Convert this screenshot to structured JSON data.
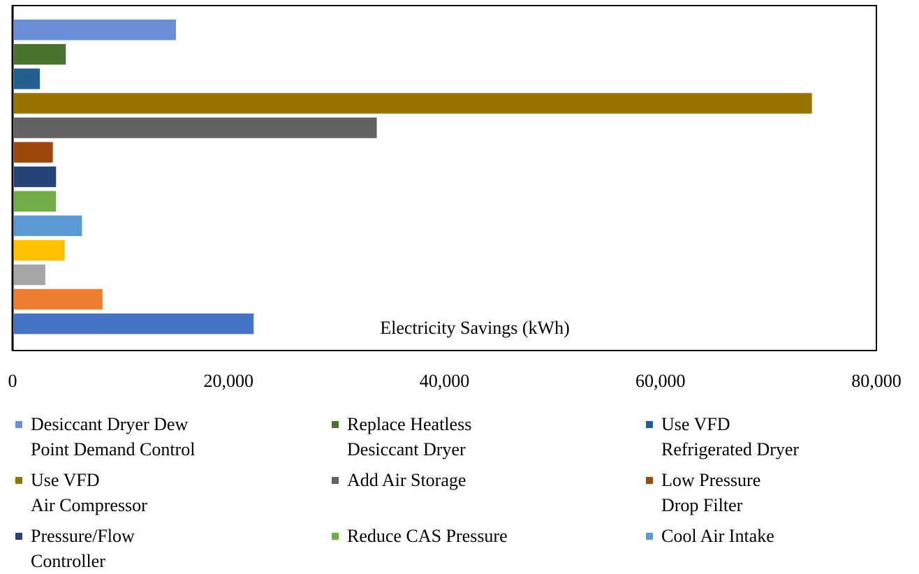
{
  "chart_data": {
    "type": "bar",
    "orientation": "horizontal",
    "categories": [
      "Electricity Savings (kWh)"
    ],
    "xlim": [
      0,
      80000
    ],
    "xticks": [
      0,
      {
        "value": 20000,
        "label": "20,000"
      },
      {
        "value": 40000,
        "label": "40,000"
      },
      {
        "value": 60000,
        "label": "60,000"
      },
      {
        "value": 80000,
        "label": "80,000"
      }
    ],
    "grid": false,
    "legend": "bottom",
    "series": [
      {
        "name": "Desiccant Dryer Dew\nPoint Demand Control",
        "color": "#6a8fd6",
        "values": [
          15000
        ]
      },
      {
        "name": "Replace Heatless\nDesiccant Dryer",
        "color": "#4a7330",
        "values": [
          4800
        ]
      },
      {
        "name": "Use VFD\nRefrigerated Dryer",
        "color": "#255e91",
        "values": [
          2400
        ]
      },
      {
        "name": "Use VFD\nAir Compressor",
        "color": "#997300",
        "values": [
          73900
        ]
      },
      {
        "name": "Add Air Storage",
        "color": "#636363",
        "values": [
          33600
        ]
      },
      {
        "name": "Low Pressure\nDrop Filter",
        "color": "#9e480e",
        "values": [
          3600
        ]
      },
      {
        "name": "Pressure/Flow\nController",
        "color": "#264478",
        "values": [
          3900
        ]
      },
      {
        "name": "Reduce CAS Pressure",
        "color": "#70ad47",
        "values": [
          3900
        ]
      },
      {
        "name": "Cool Air Intake",
        "color": "#5b9bd5",
        "values": [
          6300
        ]
      },
      {
        "name": null,
        "color": "#ffc000",
        "values": [
          4700
        ]
      },
      {
        "name": null,
        "color": "#a5a5a5",
        "values": [
          2900
        ]
      },
      {
        "name": null,
        "color": "#ed7d31",
        "values": [
          8200
        ]
      },
      {
        "name": null,
        "color": "#4472c4",
        "values": [
          22200
        ]
      }
    ]
  }
}
